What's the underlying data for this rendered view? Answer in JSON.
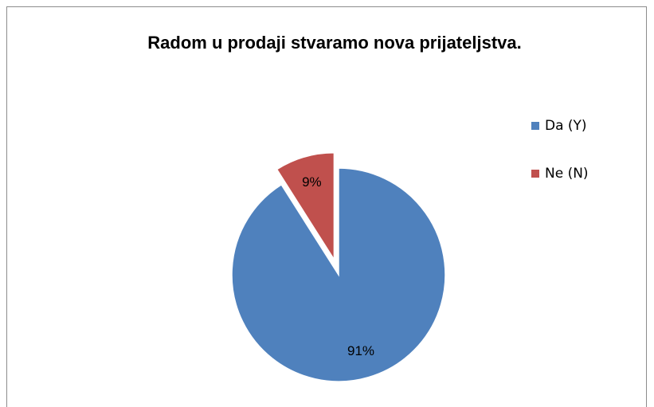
{
  "chart_data": {
    "type": "pie",
    "title": "Radom u prodaji stvaramo nova prijateljstva.",
    "categories": [
      "Da (Y)",
      "Ne (N)"
    ],
    "values": [
      91,
      9
    ],
    "value_labels": [
      "91%",
      "9%"
    ],
    "colors": [
      "#4f81bd",
      "#c0504d"
    ],
    "explode": [
      false,
      true
    ],
    "legend": "right"
  }
}
